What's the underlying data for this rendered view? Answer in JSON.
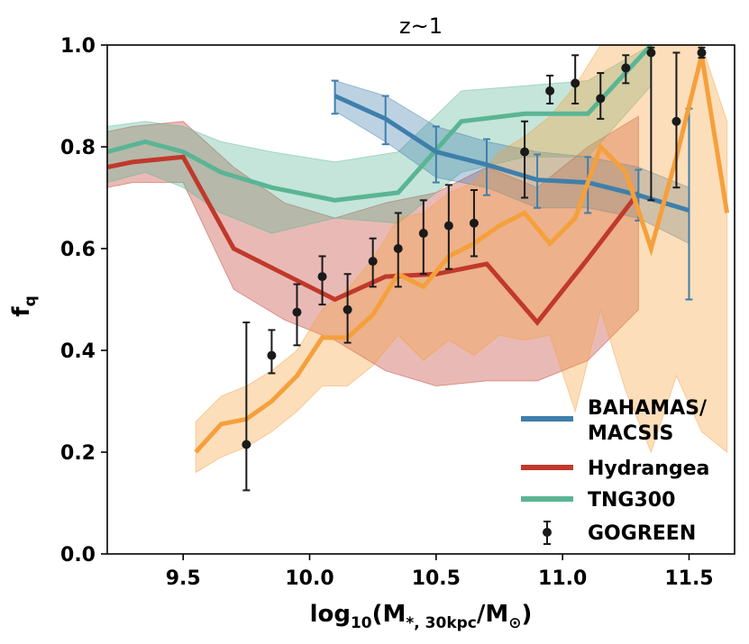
{
  "chart_data": {
    "type": "line",
    "title": "z~1",
    "xlabel": {
      "main": "log",
      "sub1": "10",
      "mid": "(M",
      "sub2": "*, 30kpc",
      "mid2": "/M",
      "sub3": "⊙",
      "end": ")"
    },
    "ylabel": {
      "main": "f",
      "sub": "q"
    },
    "xlim": [
      9.2,
      11.68
    ],
    "ylim": [
      0.0,
      1.0
    ],
    "xticks": [
      "9.5",
      "10.0",
      "10.5",
      "11.0",
      "11.5"
    ],
    "xtick_values": [
      9.5,
      10.0,
      10.5,
      11.0,
      11.5
    ],
    "yticks": [
      "0.0",
      "0.2",
      "0.4",
      "0.6",
      "0.8",
      "1.0"
    ],
    "ytick_values": [
      0.0,
      0.2,
      0.4,
      0.6,
      0.8,
      1.0
    ],
    "legend_position": "bottom-right",
    "series": [
      {
        "name": "Hydrangea",
        "kind": "band-line",
        "color": "#c0392b",
        "x": [
          9.2,
          9.3,
          9.5,
          9.7,
          9.9,
          10.1,
          10.3,
          10.5,
          10.7,
          10.9,
          11.1,
          11.3
        ],
        "y": [
          0.76,
          0.77,
          0.78,
          0.6,
          0.55,
          0.5,
          0.545,
          0.55,
          0.57,
          0.455,
          0.58,
          0.71
        ],
        "lower": [
          0.72,
          0.73,
          0.73,
          0.52,
          0.46,
          0.42,
          0.36,
          0.33,
          0.34,
          0.34,
          0.38,
          0.48
        ],
        "upper": [
          0.83,
          0.84,
          0.85,
          0.76,
          0.69,
          0.66,
          0.69,
          0.71,
          0.76,
          0.72,
          0.8,
          0.86
        ]
      },
      {
        "name": "TNG300",
        "kind": "band-line",
        "color": "#5ab594",
        "x": [
          9.2,
          9.35,
          9.5,
          9.65,
          9.85,
          10.1,
          10.35,
          10.6,
          10.85,
          11.1,
          11.35
        ],
        "y": [
          0.79,
          0.81,
          0.79,
          0.75,
          0.72,
          0.695,
          0.71,
          0.85,
          0.865,
          0.865,
          1.0
        ],
        "lower": [
          0.73,
          0.75,
          0.72,
          0.67,
          0.63,
          0.66,
          0.65,
          0.75,
          0.78,
          0.78,
          0.92
        ],
        "upper": [
          0.84,
          0.85,
          0.84,
          0.81,
          0.79,
          0.77,
          0.79,
          0.91,
          0.92,
          0.93,
          1.0
        ]
      },
      {
        "name": "BAHAMAS/\nMACSIS",
        "kind": "band-line",
        "color": "#3e7fab",
        "x": [
          10.1,
          10.3,
          10.5,
          10.7,
          10.9,
          11.1,
          11.3,
          11.5
        ],
        "y": [
          0.9,
          0.855,
          0.79,
          0.765,
          0.735,
          0.73,
          0.705,
          0.675
        ],
        "lower": [
          0.87,
          0.81,
          0.74,
          0.72,
          0.68,
          0.68,
          0.66,
          0.61
        ],
        "upper": [
          0.93,
          0.9,
          0.84,
          0.81,
          0.79,
          0.78,
          0.76,
          0.72
        ],
        "err_lo": [
          0.035,
          0.05,
          0.06,
          0.06,
          0.055,
          0.06,
          0.05,
          0.175
        ],
        "err_hi": [
          0.03,
          0.045,
          0.05,
          0.05,
          0.05,
          0.05,
          0.05,
          0.2
        ]
      },
      {
        "name": "Orange",
        "kind": "band-line",
        "color": "#f5a03c",
        "x": [
          9.55,
          9.65,
          9.75,
          9.85,
          9.95,
          10.05,
          10.15,
          10.25,
          10.35,
          10.45,
          10.55,
          10.65,
          10.75,
          10.85,
          10.95,
          11.05,
          11.15,
          11.25,
          11.35,
          11.45,
          11.55,
          11.65
        ],
        "y": [
          0.2,
          0.255,
          0.265,
          0.3,
          0.35,
          0.425,
          0.425,
          0.47,
          0.55,
          0.525,
          0.585,
          0.61,
          0.645,
          0.67,
          0.61,
          0.66,
          0.8,
          0.75,
          0.6,
          0.78,
          0.98,
          0.67
        ],
        "lower": [
          0.16,
          0.19,
          0.21,
          0.24,
          0.28,
          0.33,
          0.33,
          0.37,
          0.43,
          0.38,
          0.42,
          0.39,
          0.43,
          0.42,
          0.43,
          0.28,
          0.48,
          0.32,
          0.2,
          0.35,
          0.24,
          0.2
        ],
        "upper": [
          0.26,
          0.31,
          0.33,
          0.36,
          0.4,
          0.48,
          0.52,
          0.58,
          0.66,
          0.67,
          0.71,
          0.73,
          0.79,
          0.82,
          0.86,
          0.92,
          1.0,
          1.0,
          1.0,
          1.0,
          1.0,
          0.85
        ]
      },
      {
        "name": "GOGREEN",
        "kind": "errorbar",
        "color": "#1a1a1a",
        "x": [
          9.75,
          9.85,
          9.95,
          10.05,
          10.15,
          10.25,
          10.35,
          10.45,
          10.55,
          10.65,
          10.85,
          10.95,
          11.05,
          11.15,
          11.25,
          11.35,
          11.45,
          11.55
        ],
        "y": [
          0.215,
          0.39,
          0.475,
          0.545,
          0.48,
          0.575,
          0.6,
          0.63,
          0.645,
          0.65,
          0.79,
          0.91,
          0.925,
          0.895,
          0.955,
          0.985,
          0.85,
          0.985
        ],
        "err_lo": [
          0.09,
          0.035,
          0.065,
          0.055,
          0.065,
          0.05,
          0.075,
          0.08,
          0.085,
          0.065,
          0.09,
          0.025,
          0.04,
          0.04,
          0.03,
          0.29,
          0.13,
          0.01
        ],
        "err_hi": [
          0.24,
          0.05,
          0.055,
          0.04,
          0.07,
          0.045,
          0.07,
          0.065,
          0.08,
          0.065,
          0.06,
          0.03,
          0.055,
          0.05,
          0.025,
          0.01,
          0.135,
          0.01
        ]
      }
    ],
    "legend": [
      {
        "label": "BAHAMAS/",
        "label2": "MACSIS",
        "color": "#3e7fab",
        "marker": "line"
      },
      {
        "label": "Hydrangea",
        "color": "#c0392b",
        "marker": "line"
      },
      {
        "label": "TNG300",
        "color": "#5ab594",
        "marker": "line"
      },
      {
        "label": "GOGREEN",
        "color": "#1a1a1a",
        "marker": "errorbar"
      }
    ]
  }
}
